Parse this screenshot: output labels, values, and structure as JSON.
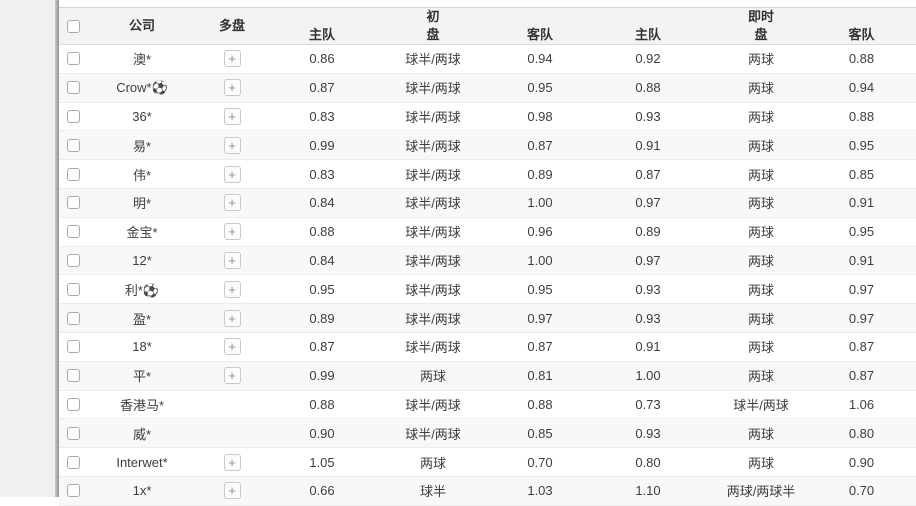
{
  "table": {
    "header": {
      "company": "公司",
      "multi": "多盘",
      "group_initial": "初",
      "group_live": "即时",
      "pan": "盘",
      "home": "主队",
      "away": "客队"
    },
    "multi_button_label": "+",
    "rows": [
      {
        "company": "澳*",
        "has_multi": true,
        "init_home": "0.86",
        "init_pan": "球半/两球",
        "init_away": "0.94",
        "live_home": "0.92",
        "live_pan": "两球",
        "live_away": "0.88"
      },
      {
        "company": "Crow*⚽",
        "has_multi": true,
        "init_home": "0.87",
        "init_pan": "球半/两球",
        "init_away": "0.95",
        "live_home": "0.88",
        "live_pan": "两球",
        "live_away": "0.94"
      },
      {
        "company": "36*",
        "has_multi": true,
        "init_home": "0.83",
        "init_pan": "球半/两球",
        "init_away": "0.98",
        "live_home": "0.93",
        "live_pan": "两球",
        "live_away": "0.88"
      },
      {
        "company": "易*",
        "has_multi": true,
        "init_home": "0.99",
        "init_pan": "球半/两球",
        "init_away": "0.87",
        "live_home": "0.91",
        "live_pan": "两球",
        "live_away": "0.95"
      },
      {
        "company": "伟*",
        "has_multi": true,
        "init_home": "0.83",
        "init_pan": "球半/两球",
        "init_away": "0.89",
        "live_home": "0.87",
        "live_pan": "两球",
        "live_away": "0.85"
      },
      {
        "company": "明*",
        "has_multi": true,
        "init_home": "0.84",
        "init_pan": "球半/两球",
        "init_away": "1.00",
        "live_home": "0.97",
        "live_pan": "两球",
        "live_away": "0.91"
      },
      {
        "company": "金宝*",
        "has_multi": true,
        "init_home": "0.88",
        "init_pan": "球半/两球",
        "init_away": "0.96",
        "live_home": "0.89",
        "live_pan": "两球",
        "live_away": "0.95"
      },
      {
        "company": "12*",
        "has_multi": true,
        "init_home": "0.84",
        "init_pan": "球半/两球",
        "init_away": "1.00",
        "live_home": "0.97",
        "live_pan": "两球",
        "live_away": "0.91"
      },
      {
        "company": "利*⚽",
        "has_multi": true,
        "init_home": "0.95",
        "init_pan": "球半/两球",
        "init_away": "0.95",
        "live_home": "0.93",
        "live_pan": "两球",
        "live_away": "0.97"
      },
      {
        "company": "盈*",
        "has_multi": true,
        "init_home": "0.89",
        "init_pan": "球半/两球",
        "init_away": "0.97",
        "live_home": "0.93",
        "live_pan": "两球",
        "live_away": "0.97"
      },
      {
        "company": "18*",
        "has_multi": true,
        "init_home": "0.87",
        "init_pan": "球半/两球",
        "init_away": "0.87",
        "live_home": "0.91",
        "live_pan": "两球",
        "live_away": "0.87"
      },
      {
        "company": "平*",
        "has_multi": true,
        "init_home": "0.99",
        "init_pan": "两球",
        "init_away": "0.81",
        "live_home": "1.00",
        "live_pan": "两球",
        "live_away": "0.87"
      },
      {
        "company": "香港马*",
        "has_multi": false,
        "init_home": "0.88",
        "init_pan": "球半/两球",
        "init_away": "0.88",
        "live_home": "0.73",
        "live_pan": "球半/两球",
        "live_away": "1.06"
      },
      {
        "company": "威*",
        "has_multi": false,
        "init_home": "0.90",
        "init_pan": "球半/两球",
        "init_away": "0.85",
        "live_home": "0.93",
        "live_pan": "两球",
        "live_away": "0.80"
      },
      {
        "company": "Interwet*",
        "has_multi": true,
        "init_home": "1.05",
        "init_pan": "两球",
        "init_away": "0.70",
        "live_home": "0.80",
        "live_pan": "两球",
        "live_away": "0.90"
      },
      {
        "company": "1x*",
        "has_multi": true,
        "init_home": "0.66",
        "init_pan": "球半",
        "init_away": "1.03",
        "live_home": "1.10",
        "live_pan": "两球/两球半",
        "live_away": "0.70"
      }
    ]
  },
  "colors": {
    "sidebar_bg": "#f1f0ee",
    "header_bg": "#f3f3f3",
    "row_alt_bg": "#f8f8f8",
    "row_border": "#ececec",
    "text": "#3d3d3d",
    "scrollbar": "#9a9a9a"
  }
}
